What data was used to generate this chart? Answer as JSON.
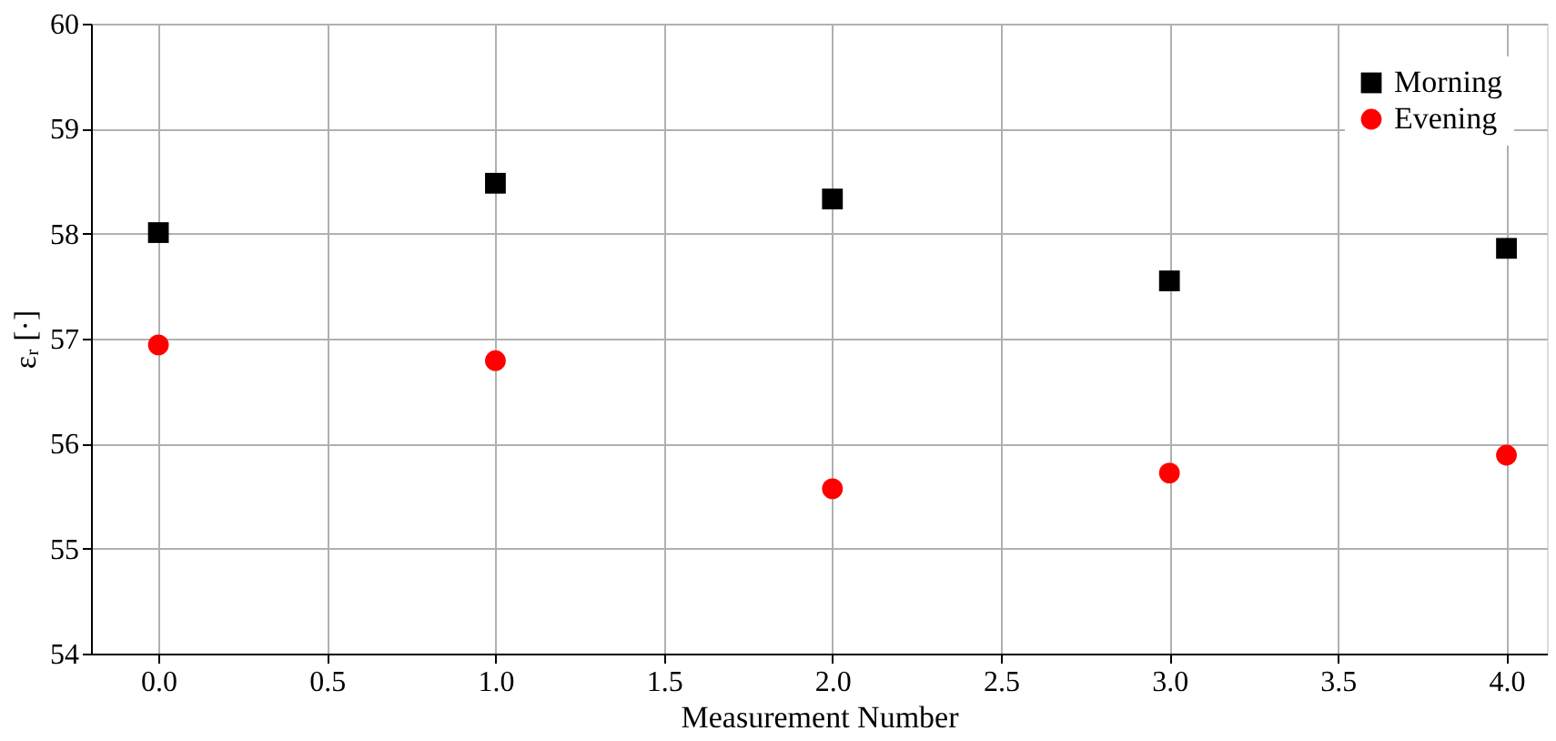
{
  "chart_data": {
    "type": "scatter",
    "xlabel": "Measurement Number",
    "ylabel": "εᵣ [·]",
    "x": [
      0,
      1,
      2,
      3,
      4
    ],
    "series": [
      {
        "name": "Morning",
        "color": "#000000",
        "marker": "square",
        "values": [
          58.01,
          58.48,
          58.33,
          57.55,
          57.86
        ]
      },
      {
        "name": "Evening",
        "color": "#ff0000",
        "marker": "circle",
        "values": [
          56.94,
          56.79,
          55.57,
          55.72,
          55.89
        ]
      }
    ],
    "xlim": [
      -0.2,
      4.12
    ],
    "xticks": [
      {
        "value": 0,
        "label": "0.0"
      },
      {
        "value": 0.5,
        "label": "0.5"
      },
      {
        "value": 1,
        "label": "1.0"
      },
      {
        "value": 1.5,
        "label": "1.5"
      },
      {
        "value": 2,
        "label": "2.0"
      },
      {
        "value": 2.5,
        "label": "2.5"
      },
      {
        "value": 3,
        "label": "3.0"
      },
      {
        "value": 3.5,
        "label": "3.5"
      },
      {
        "value": 4,
        "label": "4.0"
      }
    ],
    "ylim": [
      54,
      60
    ],
    "yticks": [
      54,
      55,
      56,
      57,
      58,
      59,
      60
    ],
    "grid": true,
    "legend": "top right"
  }
}
